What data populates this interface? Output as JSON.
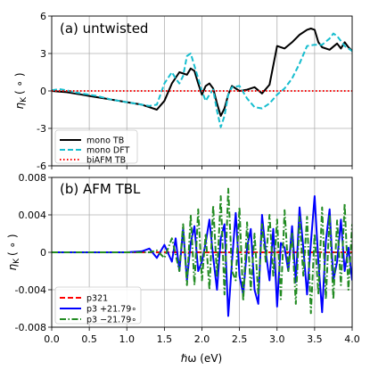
{
  "chart_data": [
    {
      "type": "line",
      "panel_label": "(a) untwisted",
      "ylabel_main": "η",
      "ylabel_sub": "K",
      "ylabel_unit": "( ∘ )",
      "xlim": [
        0.0,
        4.0
      ],
      "ylim": [
        -6,
        6
      ],
      "x_ticks": [
        0.0,
        0.5,
        1.0,
        1.5,
        2.0,
        2.5,
        3.0,
        3.5,
        4.0
      ],
      "y_ticks": [
        -6,
        -3,
        0,
        3,
        6
      ],
      "y_tick_labels": [
        "-6",
        "-3",
        "0",
        "3",
        "6"
      ],
      "grid": true,
      "legend_position": "lower-left",
      "series": [
        {
          "name": "mono TB",
          "color": "#000000",
          "style": "solid",
          "x": [
            0.0,
            0.1,
            0.2,
            0.3,
            0.4,
            0.5,
            0.6,
            0.7,
            0.8,
            0.9,
            1.0,
            1.1,
            1.2,
            1.3,
            1.4,
            1.5,
            1.6,
            1.7,
            1.8,
            1.85,
            1.9,
            1.95,
            2.0,
            2.05,
            2.1,
            2.15,
            2.2,
            2.25,
            2.3,
            2.35,
            2.4,
            2.5,
            2.6,
            2.7,
            2.8,
            2.9,
            3.0,
            3.1,
            3.2,
            3.3,
            3.4,
            3.45,
            3.5,
            3.55,
            3.6,
            3.7,
            3.8,
            3.85,
            3.9,
            3.95,
            4.0
          ],
          "y": [
            0.0,
            -0.05,
            -0.1,
            -0.2,
            -0.3,
            -0.4,
            -0.5,
            -0.6,
            -0.7,
            -0.8,
            -0.9,
            -1.0,
            -1.1,
            -1.3,
            -1.5,
            -0.8,
            0.6,
            1.5,
            1.3,
            1.8,
            1.6,
            0.6,
            -0.3,
            0.4,
            0.6,
            0.2,
            -1.0,
            -2.0,
            -1.4,
            -0.3,
            0.4,
            0.0,
            0.1,
            0.3,
            -0.2,
            0.5,
            3.6,
            3.4,
            3.9,
            4.5,
            4.9,
            5.0,
            4.9,
            3.9,
            3.5,
            3.3,
            3.8,
            3.4,
            3.9,
            3.5,
            3.2
          ]
        },
        {
          "name": "mono DFT",
          "color": "#17becf",
          "style": "dashed",
          "x": [
            0.0,
            0.1,
            0.2,
            0.3,
            0.4,
            0.5,
            0.6,
            0.7,
            0.8,
            0.9,
            1.0,
            1.1,
            1.2,
            1.3,
            1.4,
            1.5,
            1.6,
            1.65,
            1.7,
            1.75,
            1.8,
            1.85,
            1.9,
            2.0,
            2.05,
            2.1,
            2.15,
            2.2,
            2.25,
            2.3,
            2.35,
            2.4,
            2.5,
            2.6,
            2.7,
            2.8,
            2.9,
            3.0,
            3.1,
            3.2,
            3.3,
            3.4,
            3.5,
            3.6,
            3.7,
            3.75,
            3.8,
            3.9,
            4.0
          ],
          "y": [
            0.05,
            0.15,
            0.05,
            -0.1,
            -0.2,
            -0.3,
            -0.4,
            -0.55,
            -0.7,
            -0.8,
            -0.9,
            -1.0,
            -1.1,
            -1.2,
            -1.1,
            0.6,
            1.5,
            1.0,
            0.6,
            1.2,
            2.8,
            3.0,
            2.0,
            0.0,
            -0.8,
            -0.3,
            0.1,
            -1.6,
            -2.9,
            -2.0,
            -0.3,
            0.3,
            0.4,
            -0.6,
            -1.3,
            -1.4,
            -1.0,
            -0.3,
            0.2,
            1.0,
            2.2,
            3.6,
            3.7,
            3.7,
            4.2,
            4.6,
            4.4,
            3.6,
            3.2
          ]
        },
        {
          "name": "biAFM TB",
          "color": "#ff0000",
          "style": "dotted",
          "x": [
            0.0,
            4.0
          ],
          "y": [
            0.0,
            0.0
          ]
        }
      ]
    },
    {
      "type": "line",
      "panel_label": "(b) AFM TBL",
      "ylabel_main": "η",
      "ylabel_sub": "K",
      "ylabel_unit": "( ∘ )",
      "xlabel": "ℏω (eV)",
      "xlim": [
        0.0,
        4.0
      ],
      "ylim": [
        -0.008,
        0.008
      ],
      "x_ticks": [
        0.0,
        0.5,
        1.0,
        1.5,
        2.0,
        2.5,
        3.0,
        3.5,
        4.0
      ],
      "x_tick_labels": [
        "0.0",
        "0.5",
        "1.0",
        "1.5",
        "2.0",
        "2.5",
        "3.0",
        "3.5",
        "4.0"
      ],
      "y_ticks": [
        -0.008,
        -0.004,
        0,
        0.004,
        0.008
      ],
      "y_tick_labels": [
        "-0.008",
        "-0.004",
        "0",
        "0.004",
        "0.008"
      ],
      "grid": true,
      "legend_position": "lower-left",
      "series": [
        {
          "name": "p321",
          "color": "#ff0000",
          "style": "dashed",
          "x": [
            0.0,
            4.0
          ],
          "y": [
            0.0,
            0.0
          ]
        },
        {
          "name": "p3 +21.79∘",
          "color": "#0000ff",
          "style": "solid",
          "x": [
            0.0,
            1.0,
            1.2,
            1.3,
            1.4,
            1.5,
            1.6,
            1.65,
            1.7,
            1.75,
            1.8,
            1.85,
            1.9,
            1.95,
            2.0,
            2.05,
            2.1,
            2.15,
            2.2,
            2.25,
            2.3,
            2.35,
            2.4,
            2.45,
            2.5,
            2.55,
            2.6,
            2.65,
            2.7,
            2.75,
            2.8,
            2.85,
            2.9,
            2.95,
            3.0,
            3.05,
            3.1,
            3.15,
            3.2,
            3.25,
            3.3,
            3.35,
            3.4,
            3.45,
            3.5,
            3.55,
            3.6,
            3.65,
            3.7,
            3.75,
            3.8,
            3.85,
            3.9,
            3.95,
            4.0
          ],
          "y": [
            0.0,
            0.0,
            0.0001,
            0.0004,
            -0.0006,
            0.0008,
            -0.001,
            0.0015,
            -0.002,
            0.0025,
            -0.003,
            0.001,
            0.0028,
            -0.002,
            -0.001,
            0.001,
            0.0035,
            -0.0005,
            -0.004,
            0.0015,
            0.003,
            -0.0068,
            -0.001,
            0.0042,
            -0.0025,
            -0.0045,
            0.0005,
            0.0025,
            -0.004,
            -0.0055,
            0.004,
            0.0,
            -0.003,
            0.0025,
            -0.0058,
            0.001,
            0.0005,
            -0.002,
            0.0028,
            -0.0032,
            0.0048,
            0.0005,
            -0.0045,
            0.001,
            0.006,
            -0.001,
            -0.0064,
            0.0012,
            0.0046,
            -0.003,
            -0.001,
            0.0035,
            -0.002,
            0.0005,
            -0.003
          ]
        },
        {
          "name": "p3 −21.79∘",
          "color": "#228b22",
          "style": "dashdot",
          "x": [
            0.0,
            1.3,
            1.4,
            1.5,
            1.6,
            1.7,
            1.75,
            1.8,
            1.85,
            1.9,
            1.95,
            2.0,
            2.05,
            2.1,
            2.15,
            2.2,
            2.25,
            2.3,
            2.35,
            2.4,
            2.45,
            2.5,
            2.55,
            2.6,
            2.65,
            2.7,
            2.75,
            2.8,
            2.85,
            2.9,
            2.95,
            3.0,
            3.05,
            3.1,
            3.15,
            3.2,
            3.25,
            3.3,
            3.35,
            3.4,
            3.45,
            3.5,
            3.55,
            3.6,
            3.65,
            3.7,
            3.75,
            3.8,
            3.85,
            3.9,
            3.95,
            4.0
          ],
          "y": [
            0.0,
            0.0,
            0.0002,
            -0.0006,
            0.0015,
            -0.002,
            0.003,
            -0.0035,
            0.004,
            -0.0035,
            0.0046,
            -0.003,
            0.002,
            -0.004,
            0.005,
            -0.0025,
            0.006,
            -0.0045,
            0.0068,
            -0.002,
            -0.003,
            0.0048,
            -0.0052,
            0.0032,
            -0.004,
            0.002,
            -0.0045,
            0.003,
            -0.001,
            0.004,
            -0.0025,
            0.0035,
            -0.005,
            0.0045,
            -0.002,
            0.002,
            -0.0055,
            0.0038,
            -0.0025,
            0.0038,
            -0.0065,
            0.002,
            -0.0045,
            0.0048,
            -0.005,
            0.004,
            -0.005,
            0.0034,
            -0.0035,
            0.0052,
            -0.004,
            0.003
          ]
        }
      ]
    }
  ]
}
